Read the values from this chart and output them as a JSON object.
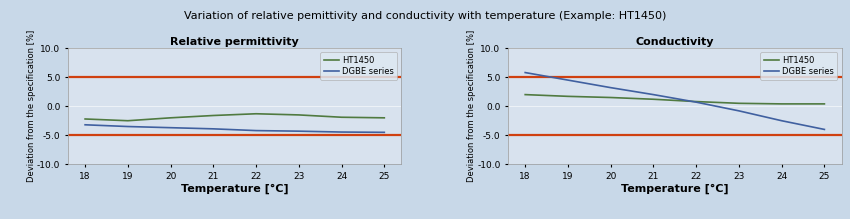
{
  "title": "Variation of relative pemittivity and conductivity with temperature (Example: HT1450)",
  "title_fontsize": 8,
  "background_color": "#c8d8e8",
  "plot_bg_color": "#d8e2ee",
  "temp_x": [
    18,
    19,
    20,
    21,
    22,
    23,
    24,
    25
  ],
  "left_title": "Relative permittivity",
  "right_title": "Conductivity",
  "ylabel": "Deviation from the specification [%]",
  "xlabel": "Temperature [°C]",
  "ylim": [
    -10.0,
    10.0
  ],
  "yticks": [
    -10.0,
    -5.0,
    0.0,
    5.0,
    10.0
  ],
  "ref_lines": [
    5.0,
    -5.0
  ],
  "ref_color": "#d04010",
  "ht1450_color": "#507a40",
  "dgbe_color": "#4060a0",
  "left_ht1450": [
    -2.2,
    -2.5,
    -2.0,
    -1.6,
    -1.3,
    -1.5,
    -1.9,
    -2.0
  ],
  "left_dgbe": [
    -3.2,
    -3.5,
    -3.7,
    -3.9,
    -4.2,
    -4.3,
    -4.45,
    -4.5
  ],
  "right_ht1450": [
    2.0,
    1.7,
    1.5,
    1.2,
    0.8,
    0.5,
    0.4,
    0.4
  ],
  "right_dgbe": [
    5.8,
    4.5,
    3.2,
    2.0,
    0.7,
    -0.8,
    -2.5,
    -4.0
  ],
  "legend_ht1450": "HT1450",
  "legend_dgbe": "DGBE series",
  "linewidth": 1.2,
  "tick_fontsize": 6.5,
  "ylabel_fontsize": 6,
  "xlabel_fontsize": 8,
  "subtitle_fontsize": 8,
  "legend_fontsize": 6
}
